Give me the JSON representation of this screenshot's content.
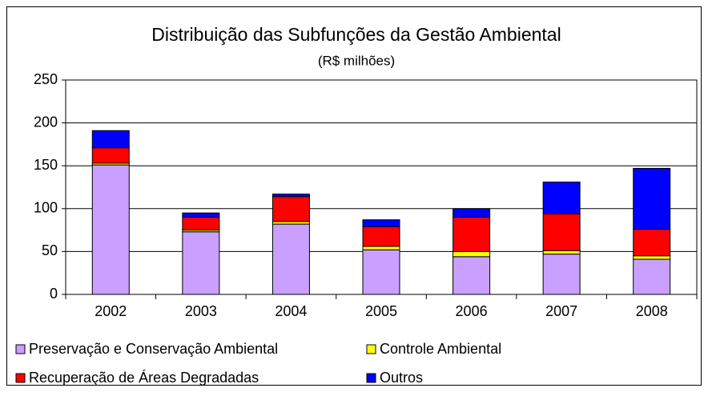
{
  "chart_data": {
    "type": "stacked_bar",
    "title": "Distribuição das Subfunções da Gestão Ambiental",
    "subtitle": "(R$ milhões)",
    "categories": [
      "2002",
      "2003",
      "2004",
      "2005",
      "2006",
      "2007",
      "2008"
    ],
    "series": [
      {
        "name": "Preservação e Conservação Ambiental",
        "color": "#c9a0ff",
        "values": [
          151,
          73,
          82,
          52,
          44,
          47,
          41
        ]
      },
      {
        "name": "Controle Ambiental",
        "color": "#ffff00",
        "values": [
          2,
          2,
          3,
          4,
          6,
          4,
          4
        ]
      },
      {
        "name": "Recuperação de Áreas Degradadas",
        "color": "#ff0000",
        "values": [
          18,
          15,
          29,
          23,
          40,
          43,
          31
        ]
      },
      {
        "name": "Outros",
        "color": "#0000ff",
        "values": [
          20,
          5,
          3,
          8,
          10,
          37,
          71
        ]
      }
    ],
    "ylim": [
      0,
      250
    ],
    "yticks": [
      0,
      50,
      100,
      150,
      200,
      250
    ],
    "grid": true
  }
}
